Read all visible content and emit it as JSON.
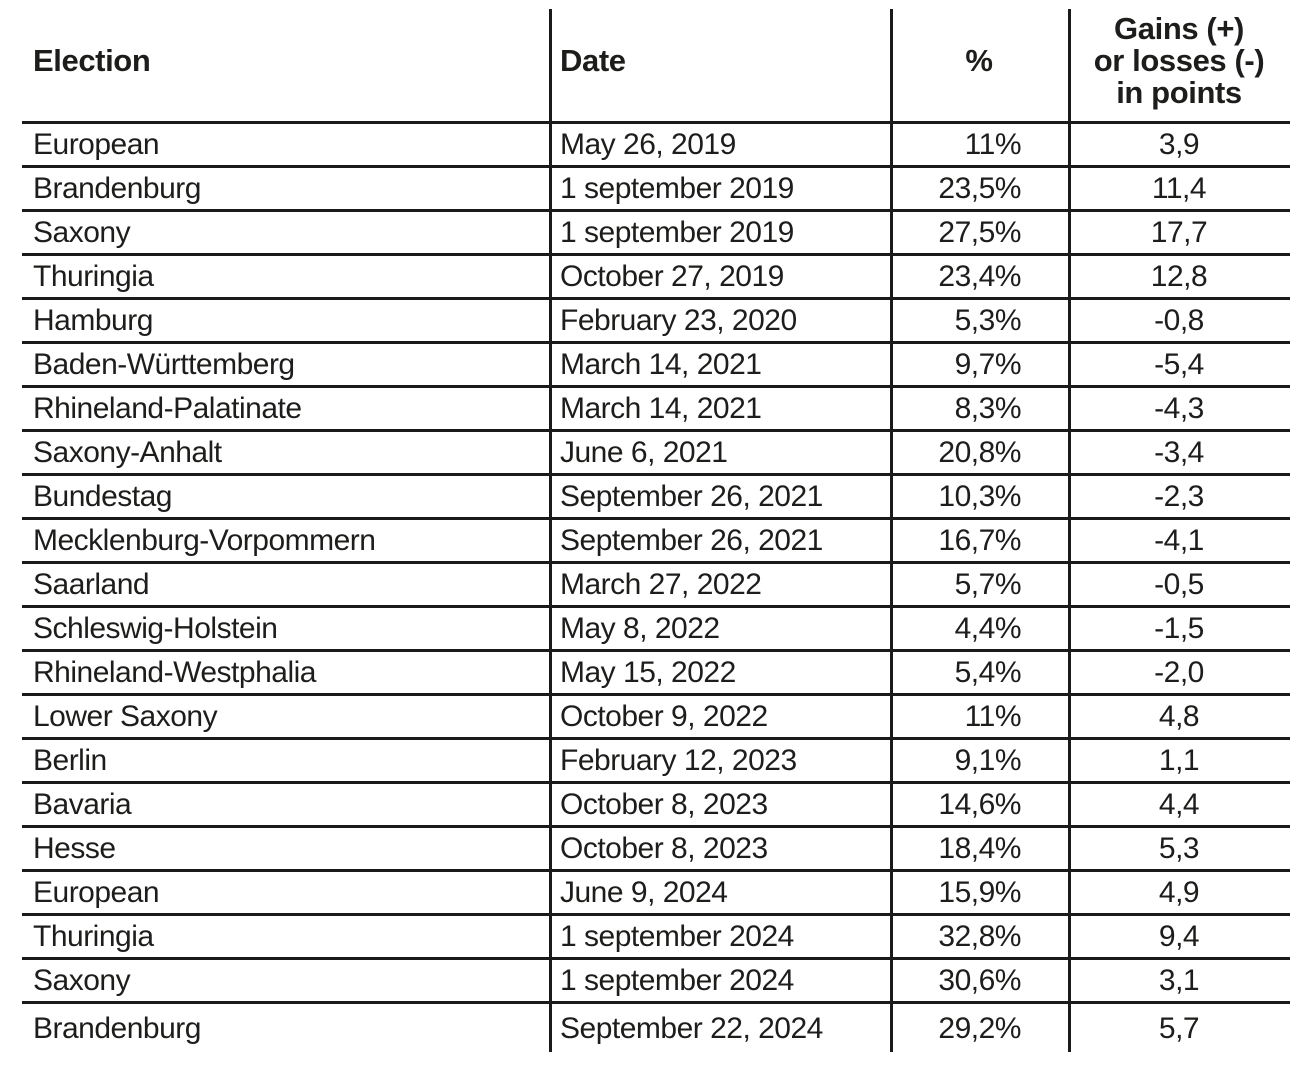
{
  "colors": {
    "text": "#1d1d1b",
    "line": "#1a1a1a",
    "background": "#ffffff"
  },
  "table": {
    "headers": {
      "election": "Election",
      "date": "Date",
      "percent": "%",
      "gains_lines": [
        "Gains (+)",
        "or losses (-)",
        "in points"
      ]
    },
    "rows": [
      {
        "election": "European",
        "date": "May 26, 2019",
        "percent": "11%",
        "gains": "3,9"
      },
      {
        "election": "Brandenburg",
        "date": "1 september 2019",
        "percent": "23,5%",
        "gains": "11,4"
      },
      {
        "election": "Saxony",
        "date": "1 september 2019",
        "percent": "27,5%",
        "gains": "17,7"
      },
      {
        "election": "Thuringia",
        "date": "October 27, 2019",
        "percent": "23,4%",
        "gains": "12,8"
      },
      {
        "election": "Hamburg",
        "date": "February 23, 2020",
        "percent": "5,3%",
        "gains": "-0,8"
      },
      {
        "election": "Baden-Württemberg",
        "date": "March 14, 2021",
        "percent": "9,7%",
        "gains": "-5,4"
      },
      {
        "election": "Rhineland-Palatinate",
        "date": "March 14, 2021",
        "percent": "8,3%",
        "gains": "-4,3"
      },
      {
        "election": "Saxony-Anhalt",
        "date": "June 6, 2021",
        "percent": "20,8%",
        "gains": "-3,4"
      },
      {
        "election": "Bundestag",
        "date": "September 26, 2021",
        "percent": "10,3%",
        "gains": "-2,3"
      },
      {
        "election": "Mecklenburg-Vorpommern",
        "date": "September 26, 2021",
        "percent": "16,7%",
        "gains": "-4,1"
      },
      {
        "election": "Saarland",
        "date": "March 27, 2022",
        "percent": "5,7%",
        "gains": "-0,5"
      },
      {
        "election": "Schleswig-Holstein",
        "date": "May 8, 2022",
        "percent": "4,4%",
        "gains": "-1,5"
      },
      {
        "election": "Rhineland-Westphalia",
        "date": "May 15, 2022",
        "percent": "5,4%",
        "gains": "-2,0"
      },
      {
        "election": "Lower Saxony",
        "date": "October 9, 2022",
        "percent": "11%",
        "gains": "4,8"
      },
      {
        "election": "Berlin",
        "date": "February 12, 2023",
        "percent": "9,1%",
        "gains": "1,1"
      },
      {
        "election": "Bavaria",
        "date": "October 8, 2023",
        "percent": "14,6%",
        "gains": "4,4"
      },
      {
        "election": "Hesse",
        "date": "October 8, 2023",
        "percent": "18,4%",
        "gains": "5,3"
      },
      {
        "election": "European",
        "date": "June 9, 2024",
        "percent": "15,9%",
        "gains": "4,9"
      },
      {
        "election": "Thuringia",
        "date": "1 september 2024",
        "percent": "32,8%",
        "gains": "9,4"
      },
      {
        "election": "Saxony",
        "date": "1 september 2024",
        "percent": "30,6%",
        "gains": "3,1"
      },
      {
        "election": "Brandenburg",
        "date": "September 22, 2024",
        "percent": "29,2%",
        "gains": "5,7"
      }
    ]
  },
  "chart_data": {
    "type": "table",
    "columns": [
      "Election",
      "Date",
      "%",
      "Gains (+) or losses (-) in points"
    ],
    "rows": [
      [
        "European",
        "May 26, 2019",
        11,
        3.9
      ],
      [
        "Brandenburg",
        "1 september 2019",
        23.5,
        11.4
      ],
      [
        "Saxony",
        "1 september 2019",
        27.5,
        17.7
      ],
      [
        "Thuringia",
        "October 27, 2019",
        23.4,
        12.8
      ],
      [
        "Hamburg",
        "February 23, 2020",
        5.3,
        -0.8
      ],
      [
        "Baden-Württemberg",
        "March 14, 2021",
        9.7,
        -5.4
      ],
      [
        "Rhineland-Palatinate",
        "March 14, 2021",
        8.3,
        -4.3
      ],
      [
        "Saxony-Anhalt",
        "June 6, 2021",
        20.8,
        -3.4
      ],
      [
        "Bundestag",
        "September 26, 2021",
        10.3,
        -2.3
      ],
      [
        "Mecklenburg-Vorpommern",
        "September 26, 2021",
        16.7,
        -4.1
      ],
      [
        "Saarland",
        "March 27, 2022",
        5.7,
        -0.5
      ],
      [
        "Schleswig-Holstein",
        "May 8, 2022",
        4.4,
        -1.5
      ],
      [
        "Rhineland-Westphalia",
        "May 15, 2022",
        5.4,
        -2.0
      ],
      [
        "Lower Saxony",
        "October 9, 2022",
        11,
        4.8
      ],
      [
        "Berlin",
        "February 12, 2023",
        9.1,
        1.1
      ],
      [
        "Bavaria",
        "October 8, 2023",
        14.6,
        4.4
      ],
      [
        "Hesse",
        "October 8, 2023",
        18.4,
        5.3
      ],
      [
        "European",
        "June 9, 2024",
        15.9,
        4.9
      ],
      [
        "Thuringia",
        "1 september 2024",
        32.8,
        9.4
      ],
      [
        "Saxony",
        "1 september 2024",
        30.6,
        3.1
      ],
      [
        "Brandenburg",
        "September 22, 2024",
        29.2,
        5.7
      ]
    ],
    "decimal_separator": ",",
    "notes": "Static infographic table of German election results with vote share and point change"
  }
}
